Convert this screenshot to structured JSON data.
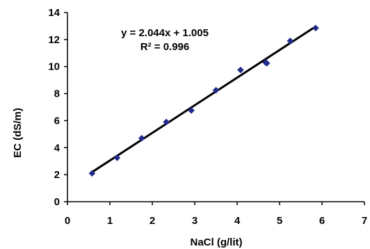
{
  "chart_data": {
    "type": "scatter",
    "xlabel": "NaCl (g/lit)",
    "ylabel": "EC (dS/m)",
    "xlim": [
      0,
      7
    ],
    "ylim": [
      0,
      14
    ],
    "xticks": [
      0,
      1,
      2,
      3,
      4,
      5,
      6,
      7
    ],
    "yticks": [
      0,
      2,
      4,
      6,
      8,
      10,
      12,
      14
    ],
    "grid": false,
    "series": [
      {
        "color": "#1f2a8a",
        "marker": "diamond",
        "x": [
          0.58,
          1.17,
          1.75,
          2.33,
          2.92,
          3.5,
          4.08,
          4.67,
          4.7,
          5.25,
          5.85
        ],
        "y": [
          2.1,
          3.25,
          4.7,
          5.9,
          6.75,
          8.25,
          9.75,
          10.3,
          10.25,
          11.9,
          12.85
        ]
      }
    ],
    "trendline": {
      "slope": 2.044,
      "intercept": 1.005,
      "x_range": [
        0.58,
        5.85
      ],
      "color": "#000000"
    },
    "annotations": {
      "equation": "y = 2.044x + 1.005",
      "r_squared": "R² = 0.996"
    }
  }
}
